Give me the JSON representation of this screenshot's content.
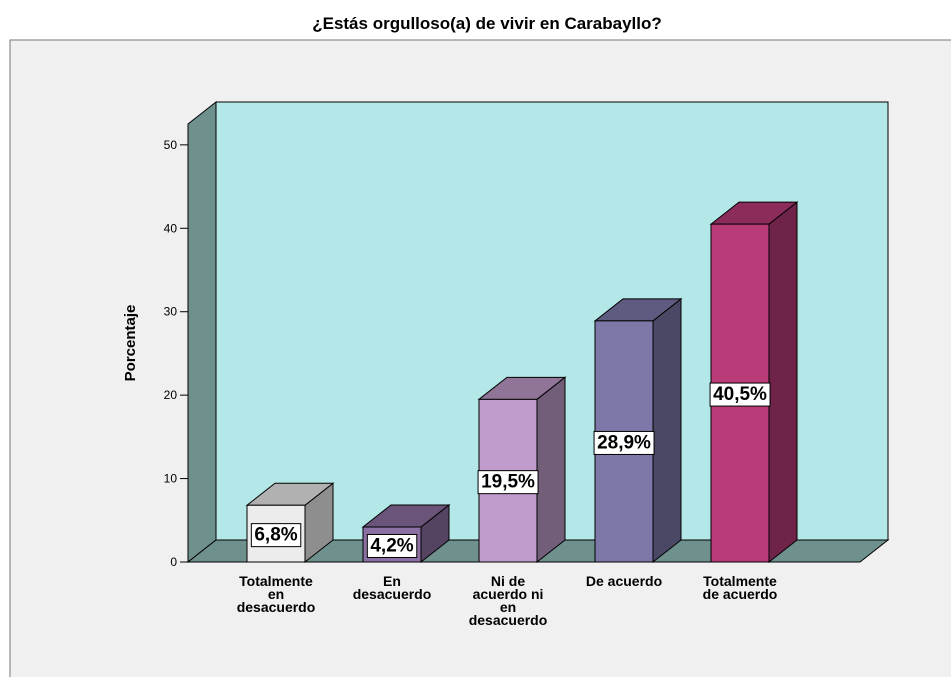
{
  "chart_data": {
    "type": "bar3d",
    "title": "¿Estás orgulloso(a) de vivir en Carabayllo?",
    "ylabel": "Porcentaje",
    "categories": [
      "Totalmente en desacuerdo",
      "En desacuerdo",
      "Ni de acuerdo ni en desacuerdo",
      "De acuerdo",
      "Totalmente de acuerdo"
    ],
    "values": [
      6.8,
      4.2,
      19.5,
      28.9,
      40.5
    ],
    "value_labels": [
      "6,8%",
      "4,2%",
      "19,5%",
      "28,9%",
      "40,5%"
    ],
    "colors": [
      "#ececec",
      "#8d70a3",
      "#c09ccc",
      "#7c79a9",
      "#b93b78"
    ],
    "ylim": [
      0,
      52.5
    ],
    "yticks": [
      0,
      10,
      20,
      30,
      40,
      50
    ]
  }
}
